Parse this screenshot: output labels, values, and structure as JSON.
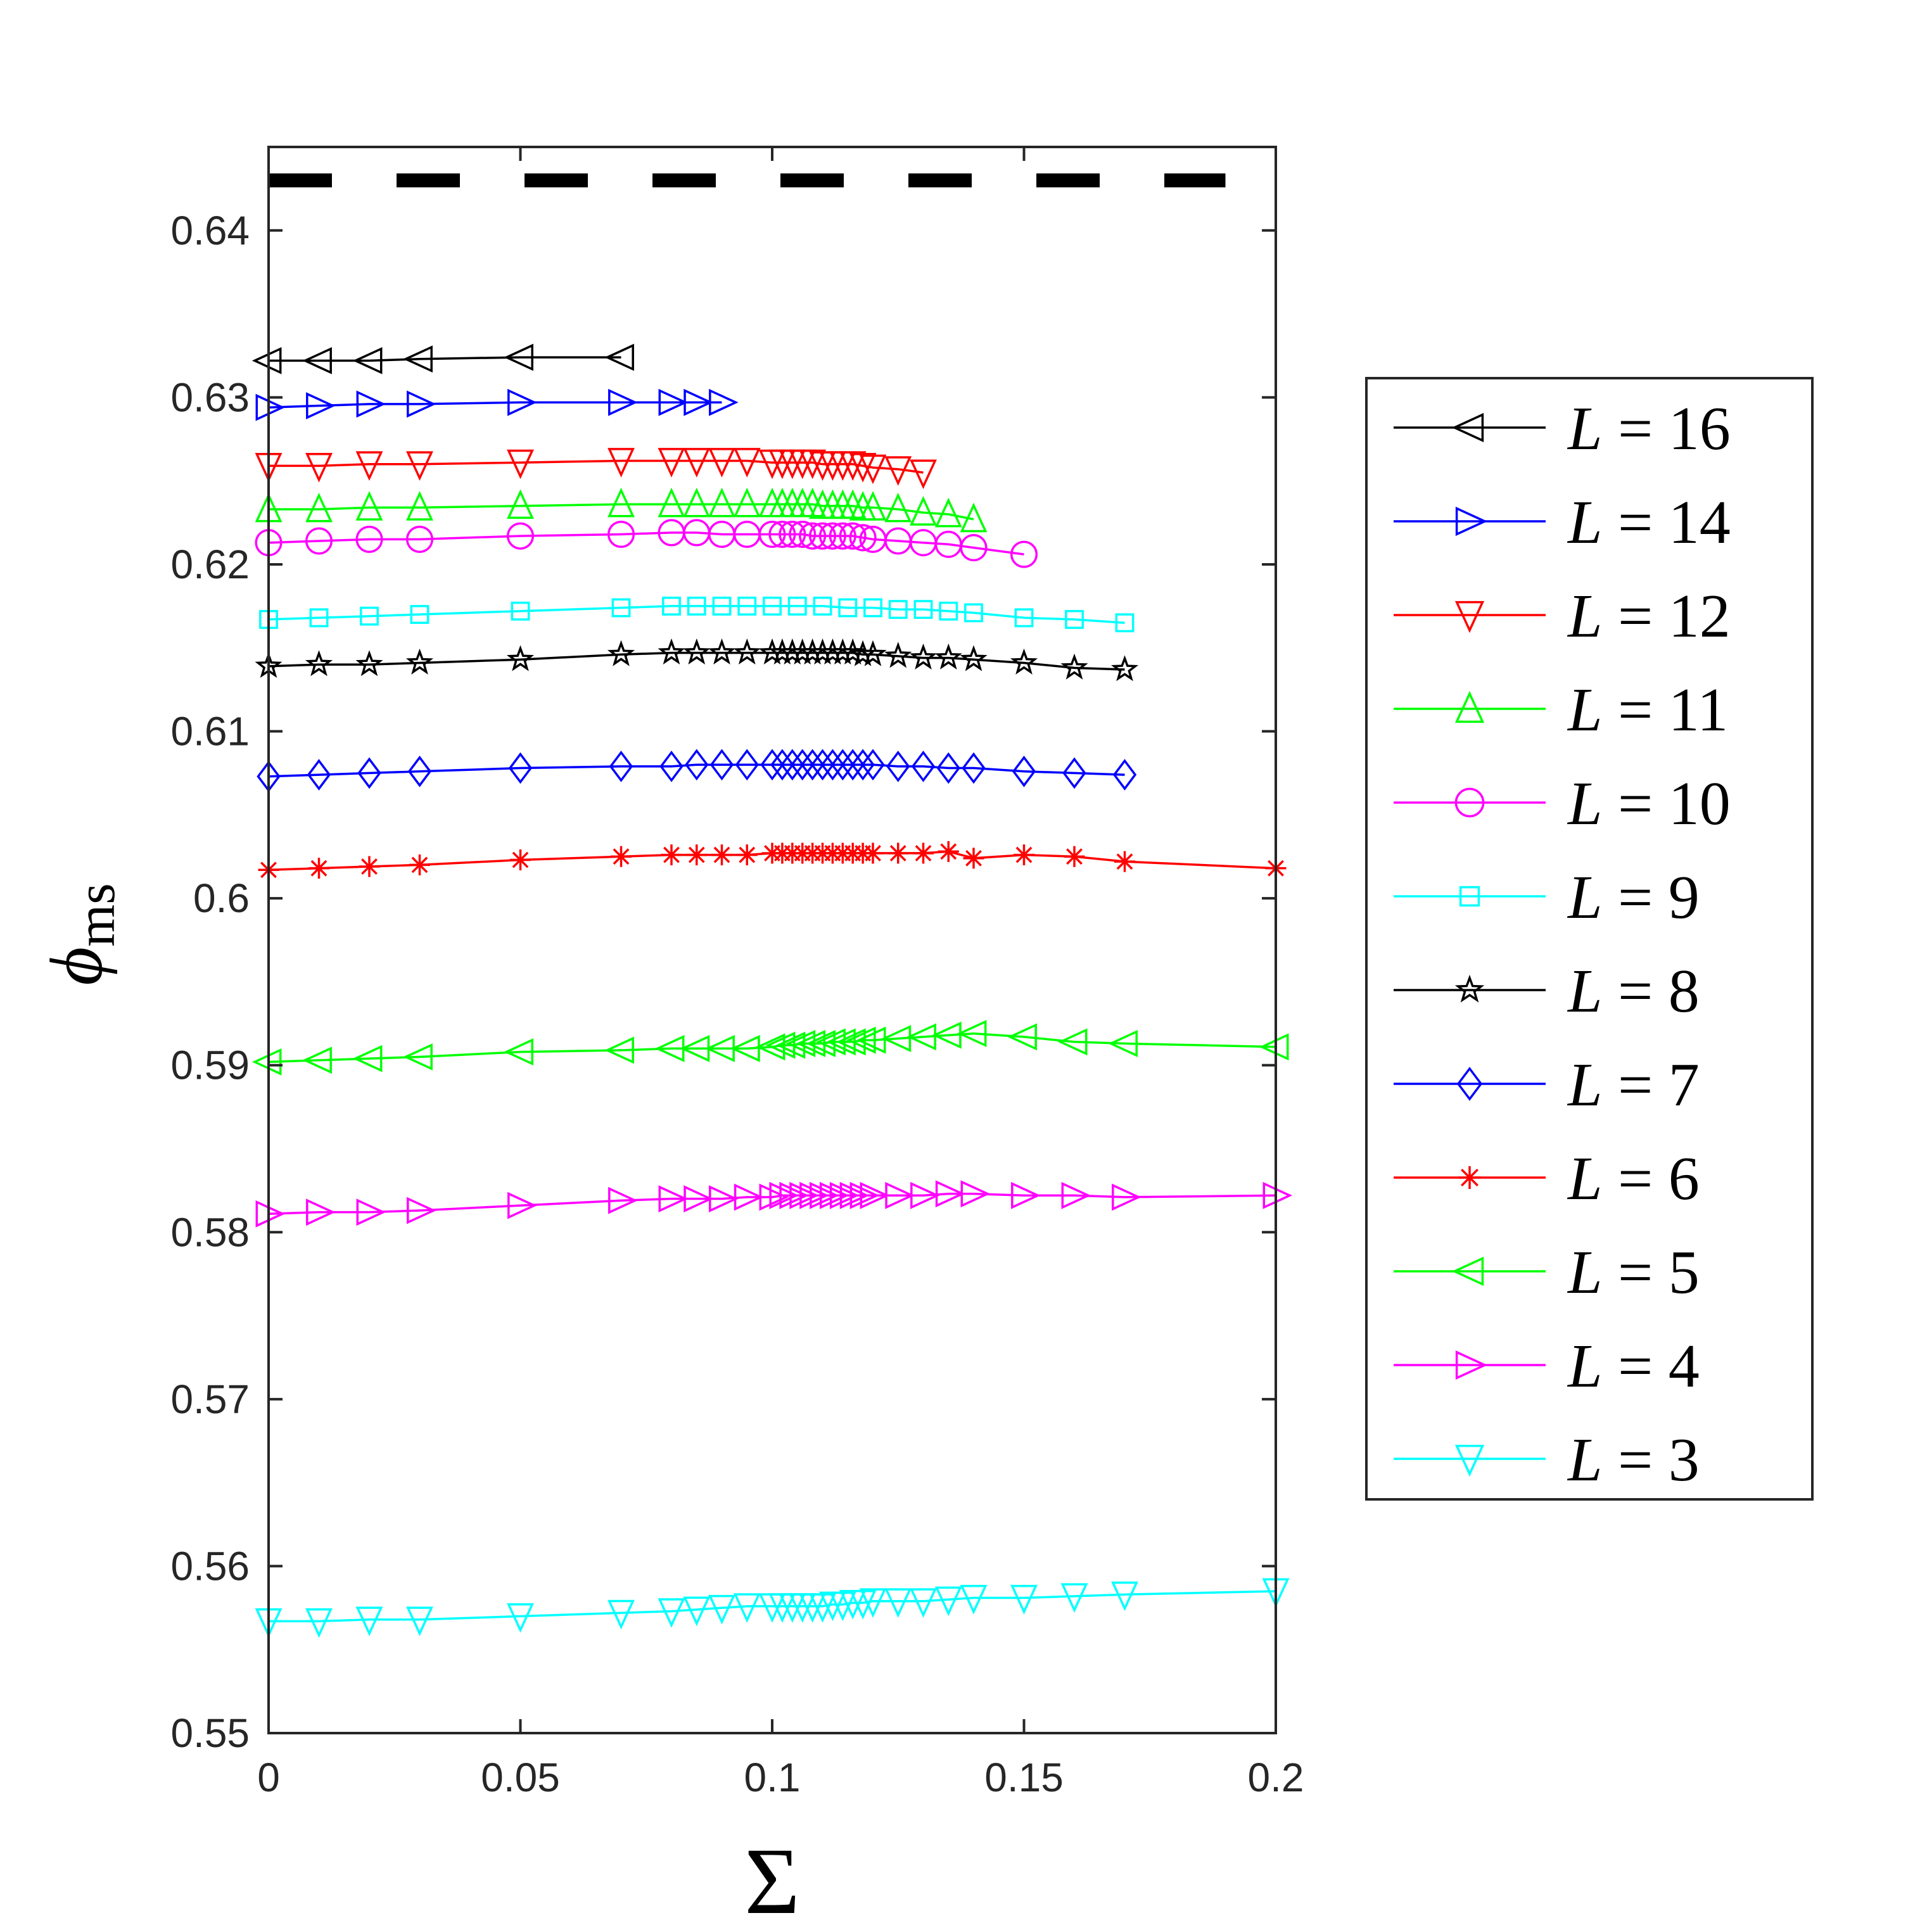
{
  "chart_data": {
    "type": "line",
    "title": "",
    "xlabel": "Σ",
    "ylabel_main": "ϕ",
    "ylabel_sub": "ms",
    "xlim": [
      0,
      0.2
    ],
    "ylim": [
      0.55,
      0.645
    ],
    "xticks": [
      0,
      0.05,
      0.1,
      0.15,
      0.2
    ],
    "xtick_labels": [
      "0",
      "0.05",
      "0.1",
      "0.15",
      "0.2"
    ],
    "yticks": [
      0.55,
      0.56,
      0.57,
      0.58,
      0.59,
      0.6,
      0.61,
      0.62,
      0.63,
      0.64
    ],
    "ytick_labels": [
      "0.55",
      "0.56",
      "0.57",
      "0.58",
      "0.59",
      "0.6",
      "0.61",
      "0.62",
      "0.63",
      "0.64"
    ],
    "grid": false,
    "legend_position": "outside-right",
    "reference_line": {
      "y": 0.643,
      "style": "dashed",
      "color": "#000000",
      "x_range": [
        0,
        0.19
      ]
    },
    "series": [
      {
        "name": "L = 16",
        "label_var": "L",
        "label_value": "16",
        "color": "#000000",
        "marker": "triangle-left",
        "x": [
          0,
          0.01,
          0.02,
          0.03,
          0.05,
          0.07
        ],
        "y": [
          0.6322,
          0.6322,
          0.6322,
          0.6323,
          0.6324,
          0.6324
        ]
      },
      {
        "name": "L = 14",
        "label_var": "L",
        "label_value": "14",
        "color": "#0000ff",
        "marker": "triangle-right",
        "x": [
          0,
          0.01,
          0.02,
          0.03,
          0.05,
          0.07,
          0.08,
          0.085,
          0.09
        ],
        "y": [
          0.6294,
          0.6295,
          0.6296,
          0.6296,
          0.6297,
          0.6297,
          0.6297,
          0.6297,
          0.6297
        ]
      },
      {
        "name": "L = 12",
        "label_var": "L",
        "label_value": "12",
        "color": "#ff0000",
        "marker": "triangle-down",
        "x": [
          0,
          0.01,
          0.02,
          0.03,
          0.05,
          0.07,
          0.08,
          0.085,
          0.09,
          0.095,
          0.1,
          0.102,
          0.104,
          0.106,
          0.108,
          0.11,
          0.112,
          0.114,
          0.116,
          0.118,
          0.12,
          0.125,
          0.13
        ],
        "y": [
          0.6259,
          0.6259,
          0.626,
          0.626,
          0.6261,
          0.6262,
          0.6262,
          0.6262,
          0.6262,
          0.6262,
          0.6261,
          0.6261,
          0.6261,
          0.6261,
          0.6261,
          0.626,
          0.626,
          0.626,
          0.626,
          0.6259,
          0.6258,
          0.6257,
          0.6255
        ]
      },
      {
        "name": "L = 11",
        "label_var": "L",
        "label_value": "11",
        "color": "#00ff00",
        "marker": "triangle-up",
        "x": [
          0,
          0.01,
          0.02,
          0.03,
          0.05,
          0.07,
          0.08,
          0.085,
          0.09,
          0.095,
          0.1,
          0.102,
          0.104,
          0.106,
          0.108,
          0.11,
          0.112,
          0.114,
          0.116,
          0.118,
          0.12,
          0.125,
          0.13,
          0.135,
          0.14
        ],
        "y": [
          0.6233,
          0.6233,
          0.6234,
          0.6234,
          0.6235,
          0.6236,
          0.6236,
          0.6236,
          0.6236,
          0.6236,
          0.6236,
          0.6236,
          0.6236,
          0.6236,
          0.6236,
          0.6235,
          0.6235,
          0.6235,
          0.6235,
          0.6234,
          0.6234,
          0.6233,
          0.6231,
          0.623,
          0.6227
        ]
      },
      {
        "name": "L = 10",
        "label_var": "L",
        "label_value": "10",
        "color": "#ff00ff",
        "marker": "circle",
        "x": [
          0,
          0.01,
          0.02,
          0.03,
          0.05,
          0.07,
          0.08,
          0.085,
          0.09,
          0.095,
          0.1,
          0.102,
          0.104,
          0.106,
          0.108,
          0.11,
          0.112,
          0.114,
          0.116,
          0.118,
          0.12,
          0.125,
          0.13,
          0.135,
          0.14,
          0.15
        ],
        "y": [
          0.6213,
          0.6214,
          0.6215,
          0.6215,
          0.6217,
          0.6218,
          0.6219,
          0.6219,
          0.6218,
          0.6218,
          0.6218,
          0.6218,
          0.6218,
          0.6218,
          0.6217,
          0.6217,
          0.6217,
          0.6217,
          0.6217,
          0.6216,
          0.6215,
          0.6214,
          0.6213,
          0.6212,
          0.621,
          0.6206
        ]
      },
      {
        "name": "L = 9",
        "label_var": "L",
        "label_value": "9",
        "color": "#00ffff",
        "marker": "square",
        "x": [
          0,
          0.01,
          0.02,
          0.03,
          0.05,
          0.07,
          0.08,
          0.085,
          0.09,
          0.095,
          0.1,
          0.105,
          0.11,
          0.115,
          0.12,
          0.125,
          0.13,
          0.135,
          0.14,
          0.15,
          0.16,
          0.17
        ],
        "y": [
          0.6167,
          0.6168,
          0.6169,
          0.617,
          0.6172,
          0.6174,
          0.6175,
          0.6175,
          0.6175,
          0.6175,
          0.6175,
          0.6175,
          0.6175,
          0.6174,
          0.6174,
          0.6173,
          0.6173,
          0.6172,
          0.6171,
          0.6168,
          0.6167,
          0.6165
        ]
      },
      {
        "name": "L = 8",
        "label_var": "L",
        "label_value": "8",
        "color": "#000000",
        "marker": "star",
        "x": [
          0,
          0.01,
          0.02,
          0.03,
          0.05,
          0.07,
          0.08,
          0.085,
          0.09,
          0.095,
          0.1,
          0.102,
          0.104,
          0.106,
          0.108,
          0.11,
          0.112,
          0.114,
          0.116,
          0.118,
          0.12,
          0.125,
          0.13,
          0.135,
          0.14,
          0.15,
          0.16,
          0.17
        ],
        "y": [
          0.6139,
          0.614,
          0.614,
          0.6141,
          0.6143,
          0.6146,
          0.6147,
          0.6147,
          0.6147,
          0.6147,
          0.6147,
          0.6147,
          0.6147,
          0.6147,
          0.6147,
          0.6147,
          0.6147,
          0.6147,
          0.6147,
          0.6146,
          0.6146,
          0.6145,
          0.6144,
          0.6144,
          0.6143,
          0.6141,
          0.6138,
          0.6137
        ]
      },
      {
        "name": "L = 7",
        "label_var": "L",
        "label_value": "7",
        "color": "#0000ff",
        "marker": "diamond",
        "x": [
          0,
          0.01,
          0.02,
          0.03,
          0.05,
          0.07,
          0.08,
          0.085,
          0.09,
          0.095,
          0.1,
          0.102,
          0.104,
          0.106,
          0.108,
          0.11,
          0.112,
          0.114,
          0.116,
          0.118,
          0.12,
          0.125,
          0.13,
          0.135,
          0.14,
          0.15,
          0.16,
          0.17
        ],
        "y": [
          0.6073,
          0.6074,
          0.6075,
          0.6076,
          0.6078,
          0.6079,
          0.6079,
          0.608,
          0.608,
          0.608,
          0.608,
          0.608,
          0.608,
          0.608,
          0.608,
          0.608,
          0.608,
          0.608,
          0.608,
          0.608,
          0.608,
          0.6079,
          0.6079,
          0.6078,
          0.6078,
          0.6076,
          0.6075,
          0.6074
        ]
      },
      {
        "name": "L = 6",
        "label_var": "L",
        "label_value": "6",
        "color": "#ff0000",
        "marker": "asterisk",
        "x": [
          0,
          0.01,
          0.02,
          0.03,
          0.05,
          0.07,
          0.08,
          0.085,
          0.09,
          0.095,
          0.1,
          0.102,
          0.104,
          0.106,
          0.108,
          0.11,
          0.112,
          0.114,
          0.116,
          0.118,
          0.12,
          0.125,
          0.13,
          0.135,
          0.14,
          0.15,
          0.16,
          0.17,
          0.2
        ],
        "y": [
          0.6017,
          0.6018,
          0.6019,
          0.602,
          0.6023,
          0.6025,
          0.6026,
          0.6026,
          0.6026,
          0.6026,
          0.6027,
          0.6027,
          0.6027,
          0.6027,
          0.6027,
          0.6027,
          0.6027,
          0.6027,
          0.6027,
          0.6027,
          0.6027,
          0.6027,
          0.6027,
          0.6028,
          0.6024,
          0.6026,
          0.6025,
          0.6022,
          0.6018
        ]
      },
      {
        "name": "L = 5",
        "label_var": "L",
        "label_value": "5",
        "color": "#00ff00",
        "marker": "triangle-left",
        "x": [
          0,
          0.01,
          0.02,
          0.03,
          0.05,
          0.07,
          0.08,
          0.085,
          0.09,
          0.095,
          0.1,
          0.102,
          0.104,
          0.106,
          0.108,
          0.11,
          0.112,
          0.114,
          0.116,
          0.118,
          0.12,
          0.125,
          0.13,
          0.135,
          0.14,
          0.15,
          0.16,
          0.17,
          0.2
        ],
        "y": [
          0.5902,
          0.5903,
          0.5904,
          0.5905,
          0.5908,
          0.5909,
          0.591,
          0.591,
          0.591,
          0.591,
          0.5911,
          0.5912,
          0.5912,
          0.5913,
          0.5913,
          0.5913,
          0.5914,
          0.5914,
          0.5914,
          0.5915,
          0.5915,
          0.5916,
          0.5917,
          0.5918,
          0.5919,
          0.5917,
          0.5914,
          0.5913,
          0.5911
        ]
      },
      {
        "name": "L = 4",
        "label_var": "L",
        "label_value": "4",
        "color": "#ff00ff",
        "marker": "triangle-right",
        "x": [
          0,
          0.01,
          0.02,
          0.03,
          0.05,
          0.07,
          0.08,
          0.085,
          0.09,
          0.095,
          0.1,
          0.102,
          0.104,
          0.106,
          0.108,
          0.11,
          0.112,
          0.114,
          0.116,
          0.118,
          0.12,
          0.125,
          0.13,
          0.135,
          0.14,
          0.15,
          0.16,
          0.17,
          0.2
        ],
        "y": [
          0.5811,
          0.5812,
          0.5812,
          0.5813,
          0.5816,
          0.5819,
          0.582,
          0.582,
          0.582,
          0.5821,
          0.5821,
          0.5822,
          0.5822,
          0.5822,
          0.5822,
          0.5822,
          0.5822,
          0.5822,
          0.5822,
          0.5822,
          0.5822,
          0.5822,
          0.5822,
          0.5823,
          0.5823,
          0.5822,
          0.5822,
          0.5821,
          0.5822
        ]
      },
      {
        "name": "L = 3",
        "label_var": "L",
        "label_value": "3",
        "color": "#00ffff",
        "marker": "triangle-down",
        "x": [
          0,
          0.01,
          0.02,
          0.03,
          0.05,
          0.07,
          0.08,
          0.085,
          0.09,
          0.095,
          0.1,
          0.102,
          0.104,
          0.106,
          0.108,
          0.11,
          0.112,
          0.114,
          0.116,
          0.118,
          0.12,
          0.125,
          0.13,
          0.135,
          0.14,
          0.15,
          0.16,
          0.17,
          0.2
        ],
        "y": [
          0.5567,
          0.5567,
          0.5568,
          0.5568,
          0.557,
          0.5572,
          0.5573,
          0.5574,
          0.5575,
          0.5576,
          0.5576,
          0.5576,
          0.5576,
          0.5576,
          0.5576,
          0.5576,
          0.5577,
          0.5577,
          0.5578,
          0.5578,
          0.5579,
          0.5579,
          0.5579,
          0.558,
          0.5581,
          0.5581,
          0.5582,
          0.5583,
          0.5585
        ]
      }
    ]
  }
}
